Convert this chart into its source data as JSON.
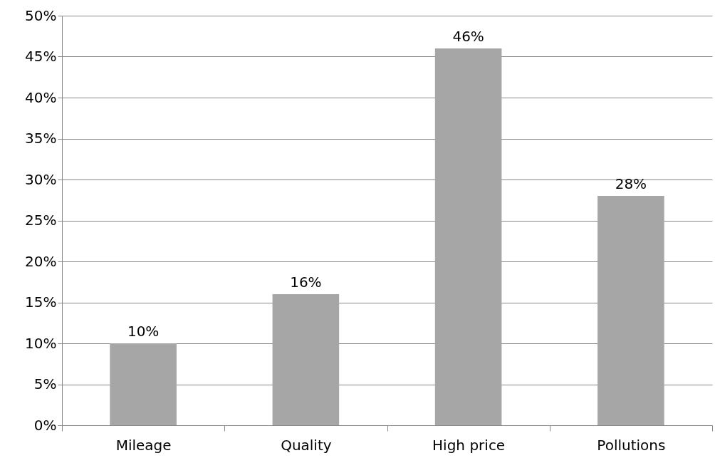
{
  "chart_data": {
    "type": "bar",
    "categories": [
      "Mileage",
      "Quality",
      "High price",
      "Pollutions"
    ],
    "values": [
      10,
      16,
      46,
      28
    ],
    "value_labels": [
      "10%",
      "16%",
      "46%",
      "28%"
    ],
    "color": "#a6a6a6",
    "ylim": [
      0,
      50
    ],
    "yticks": [
      {
        "value": 0,
        "label": "0%"
      },
      {
        "value": 5,
        "label": "5%"
      },
      {
        "value": 10,
        "label": "10%"
      },
      {
        "value": 15,
        "label": "15%"
      },
      {
        "value": 20,
        "label": "20%"
      },
      {
        "value": 25,
        "label": "25%"
      },
      {
        "value": 30,
        "label": "30%"
      },
      {
        "value": 35,
        "label": "35%"
      },
      {
        "value": 40,
        "label": "40%"
      },
      {
        "value": 45,
        "label": "45%"
      },
      {
        "value": 50,
        "label": "50%"
      }
    ],
    "grid": "y"
  }
}
